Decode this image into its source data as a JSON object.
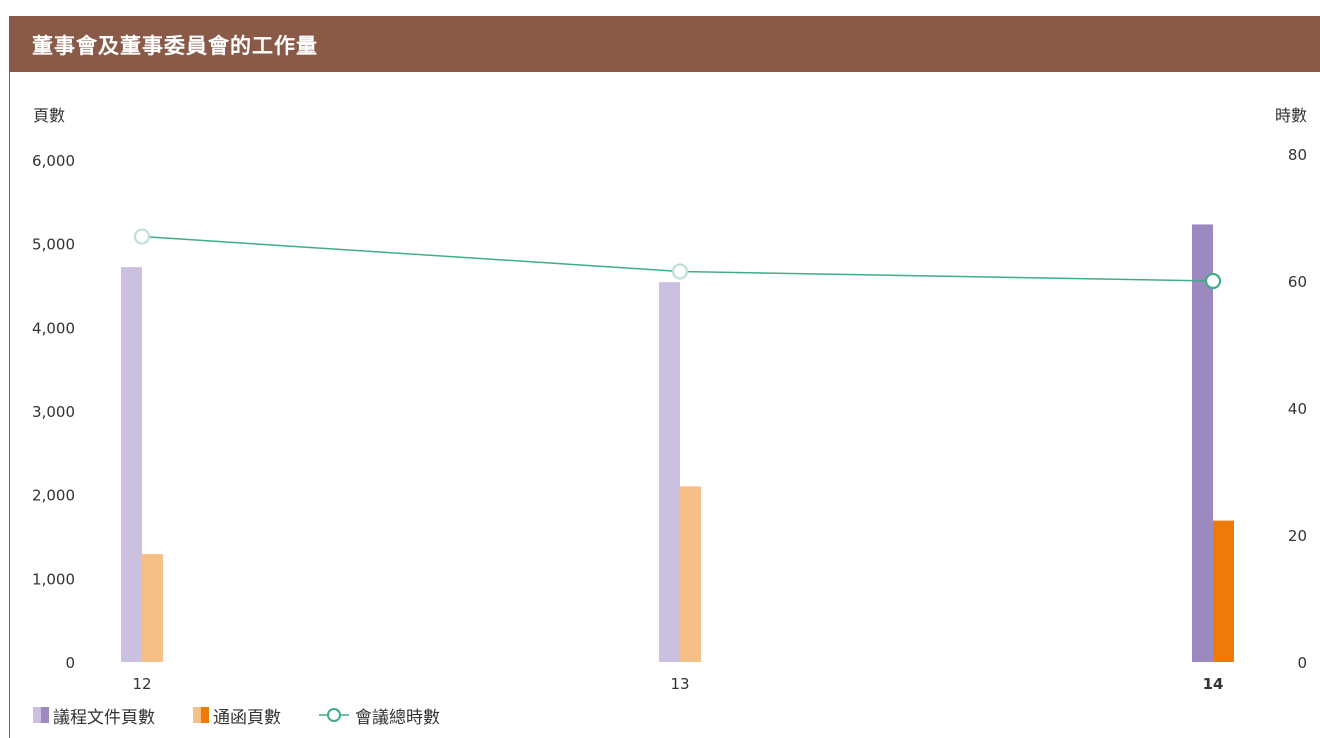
{
  "header": {
    "title": "董事會及董事委員會的工作量"
  },
  "colors": {
    "header_bg": "#8a5a49",
    "agenda_light": "#cbc0e0",
    "agenda_dark": "#9b89c0",
    "circular_light": "#f5c088",
    "circular_dark": "#ee7a0a",
    "line": "#3fad86",
    "marker_light": "#bfe0d2"
  },
  "chart_data": {
    "type": "bar",
    "categories": [
      "12",
      "13",
      "14"
    ],
    "highlight_category": "14",
    "series": [
      {
        "name": "議程文件頁數",
        "axis": "left",
        "values": [
          4720,
          4540,
          5230
        ]
      },
      {
        "name": "通函頁數",
        "axis": "left",
        "values": [
          1290,
          2100,
          1690
        ]
      },
      {
        "name": "會議總時數",
        "axis": "right",
        "type": "line",
        "values": [
          67,
          61.5,
          60
        ]
      }
    ],
    "ylabel": "頁數",
    "y2label": "時數",
    "ylim": [
      0,
      6000
    ],
    "y2lim": [
      0,
      80
    ],
    "yticks": [
      "0",
      "1,000",
      "2,000",
      "3,000",
      "4,000",
      "5,000",
      "6,000"
    ],
    "y2ticks": [
      "0",
      "20",
      "40",
      "60",
      "80"
    ],
    "grid": false,
    "legend_position": "bottom-left"
  }
}
